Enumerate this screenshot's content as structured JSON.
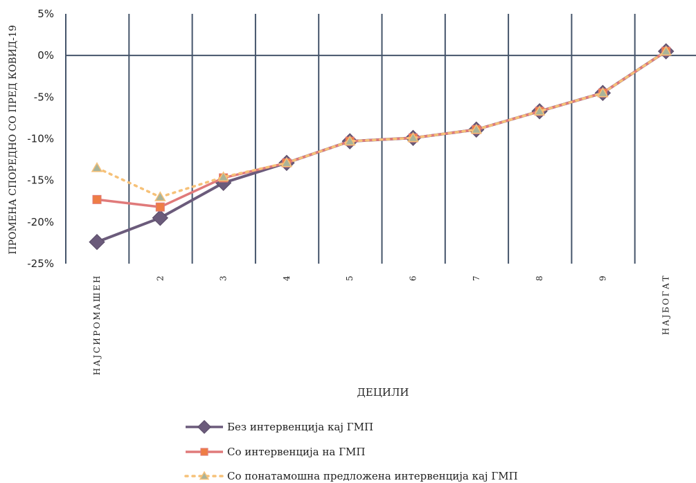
{
  "chart_data": {
    "type": "line",
    "xlabel": "ДЕЦИЛИ",
    "ylabel": "ПРОМЕНА СПОРЕДНО СО ПРЕД КОВИД-19",
    "categories": [
      "НАЈСИРОМАШЕН",
      "2",
      "3",
      "4",
      "5",
      "6",
      "7",
      "8",
      "9",
      "НАЈБОГАТ"
    ],
    "ylim": [
      -25,
      5
    ],
    "yticks": [
      5,
      0,
      -5,
      -10,
      -15,
      -20,
      -25
    ],
    "ytick_labels": [
      "5%",
      "0%",
      "-5%",
      "-10%",
      "-15%",
      "-20%",
      "-25%"
    ],
    "grid": {
      "vertical": true,
      "horizontal": false,
      "zero_line": true
    },
    "legend_position": "bottom",
    "series": [
      {
        "name": "Без интервенција кај ГМП",
        "color": "#6B5B7B",
        "marker": "diamond",
        "style": "solid",
        "values": [
          -22.4,
          -19.5,
          -15.3,
          -12.9,
          -10.3,
          -9.9,
          -8.9,
          -6.7,
          -4.5,
          0.5
        ]
      },
      {
        "name": "Со интервенција на ГМП",
        "color": "#E07A7A",
        "marker": "square",
        "style": "solid",
        "values": [
          -17.3,
          -18.2,
          -14.7,
          -12.9,
          -10.3,
          -9.9,
          -8.9,
          -6.7,
          -4.5,
          0.5
        ]
      },
      {
        "name": "Со понатамошна предложена интервенција кај ГМП",
        "color": "#F6C178",
        "marker": "triangle",
        "style": "dotted",
        "values": [
          -13.5,
          -17.0,
          -14.6,
          -12.9,
          -10.3,
          -9.9,
          -8.9,
          -6.7,
          -4.5,
          0.5
        ]
      }
    ]
  }
}
